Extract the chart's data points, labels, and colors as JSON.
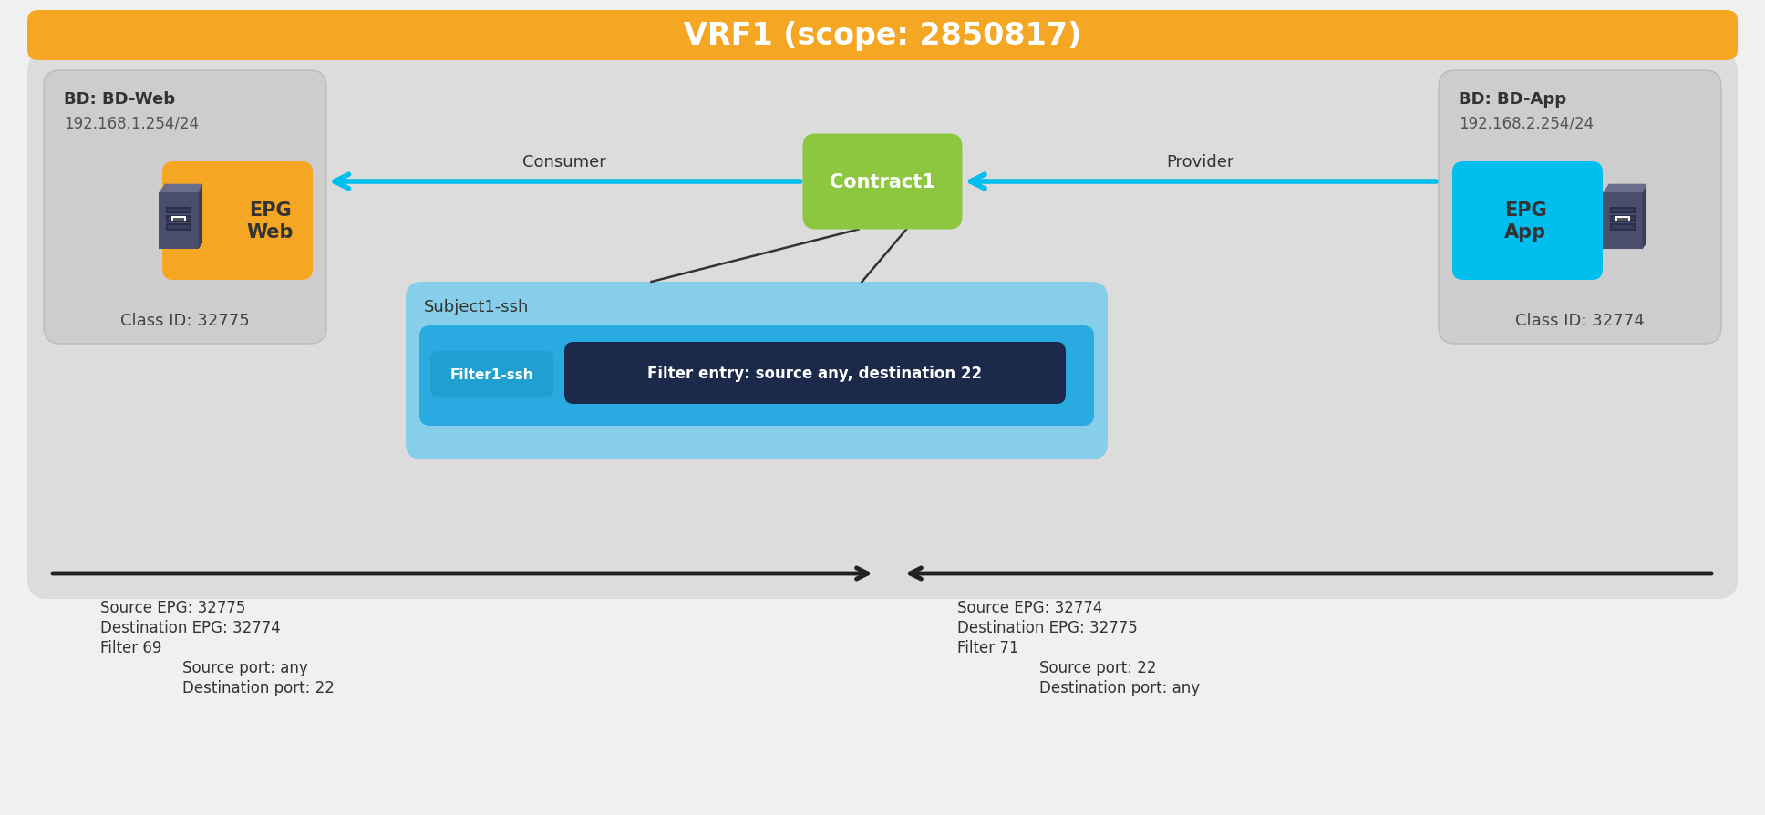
{
  "title": "VRF1 (scope: 2850817)",
  "title_bg": "#F5A623",
  "title_color": "#FFFFFF",
  "bg_color": "#DCDCDC",
  "outer_bg": "#F0F0F0",
  "bd_web_label": "BD: BD-Web",
  "bd_web_ip": "192.168.1.254/24",
  "bd_web_class": "Class ID: 32775",
  "bd_app_label": "BD: BD-App",
  "bd_app_ip": "192.168.2.254/24",
  "bd_app_class": "Class ID: 32774",
  "epg_web_label": "EPG\nWeb",
  "epg_web_color": "#F5A623",
  "epg_app_label": "EPG\nApp",
  "epg_app_color": "#00BFEF",
  "contract_label": "Contract1",
  "contract_bg": "#8DC63F",
  "subject_label": "Subject1-ssh",
  "subject_bg": "#87CEEB",
  "subject_inner_bg": "#29ABE2",
  "filter_label": "Filter1-ssh",
  "filter_bg": "#29ABE2",
  "filter_entry_label": "Filter entry: source any, destination 22",
  "filter_entry_bg": "#1B2A4A",
  "filter_entry_color": "#FFFFFF",
  "consumer_label": "Consumer",
  "provider_label": "Provider",
  "arrow_color": "#00BFEF",
  "line_color": "#333333",
  "left_arrow_text1": "Source EPG: 32775",
  "left_arrow_text2": "Destination EPG: 32774",
  "left_arrow_text3": "Filter 69",
  "left_arrow_text4": "Source port: any",
  "left_arrow_text5": "Destination port: 22",
  "right_arrow_text1": "Source EPG: 32774",
  "right_arrow_text2": "Destination EPG: 32775",
  "right_arrow_text3": "Filter 71",
  "right_arrow_text4": "Source port: 22",
  "right_arrow_text5": "Destination port: any"
}
